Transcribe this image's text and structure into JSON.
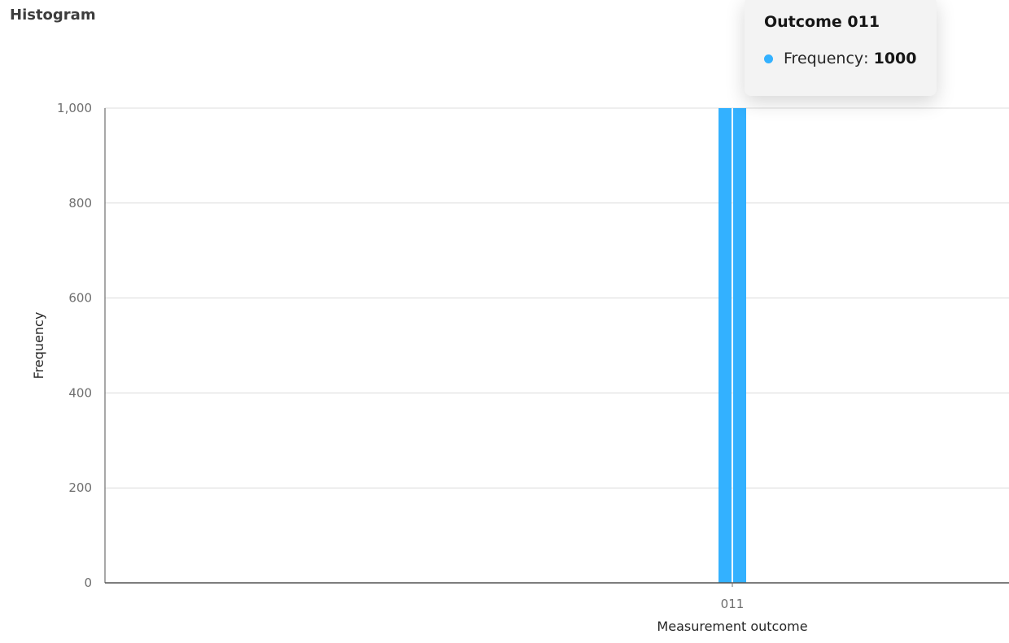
{
  "chart_data": {
    "type": "bar",
    "title": "Histogram",
    "xlabel": "Measurement outcome",
    "ylabel": "Frequency",
    "categories": [
      "011"
    ],
    "values": [
      1000
    ],
    "ylim": [
      0,
      1000
    ],
    "yticks": [
      0,
      200,
      400,
      600,
      800,
      1000
    ],
    "ytick_labels": [
      "0",
      "200",
      "400",
      "600",
      "800",
      "1,000"
    ],
    "grid": true,
    "bar_color": "#33b1ff"
  },
  "tooltip": {
    "title": "Outcome 011",
    "series_label": "Frequency",
    "separator": ":",
    "value": "1000"
  }
}
